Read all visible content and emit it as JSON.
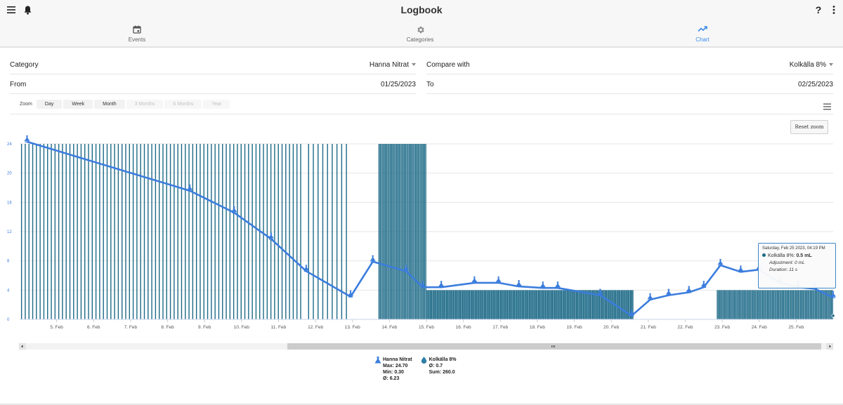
{
  "header": {
    "title": "Logbook",
    "help_label": "?",
    "tabs": [
      {
        "label": "Events",
        "icon": "calendar-icon",
        "active": false
      },
      {
        "label": "Categories",
        "icon": "gear-icon",
        "active": false
      },
      {
        "label": "Chart",
        "icon": "trending-up-icon",
        "active": true
      }
    ]
  },
  "filters": {
    "category_label": "Category",
    "category_value": "Hanna Nitrat",
    "compare_label": "Compare with",
    "compare_value": "Kolkälla 8%",
    "from_label": "From",
    "from_value": "01/25/2023",
    "to_label": "To",
    "to_value": "02/25/2023"
  },
  "zoom": {
    "label": "Zoom",
    "buttons": [
      {
        "label": "Day",
        "enabled": true
      },
      {
        "label": "Week",
        "enabled": true
      },
      {
        "label": "Month",
        "enabled": true
      },
      {
        "label": "3 Months",
        "enabled": false
      },
      {
        "label": "6 Months",
        "enabled": false
      },
      {
        "label": "Year",
        "enabled": false
      }
    ],
    "reset_label": "Reset zoom"
  },
  "colors": {
    "line": "#3b7ddd",
    "bars": "#1d6a87",
    "accent": "#3b8beb"
  },
  "chart_data": {
    "type": "line",
    "x_range": [
      "Feb 4, 2023",
      "Feb 26, 2023"
    ],
    "ylim": [
      0,
      24
    ],
    "y_ticks": [
      0,
      4,
      8,
      12,
      16,
      20,
      24
    ],
    "x_ticks": [
      "5. Feb",
      "6. Feb",
      "7. Feb",
      "8. Feb",
      "9. Feb",
      "10. Feb",
      "11. Feb",
      "12. Feb",
      "13. Feb",
      "14. Feb",
      "15. Feb",
      "16. Feb",
      "17. Feb",
      "18. Feb",
      "19. Feb",
      "20. Feb",
      "21. Feb",
      "22. Feb",
      "23. Feb",
      "24. Feb",
      "25. Feb"
    ],
    "grid": true,
    "series": [
      {
        "name": "Hanna Nitrat",
        "type": "line",
        "points": [
          [
            4.2,
            24.3
          ],
          [
            8.6,
            17.6
          ],
          [
            9.8,
            14.6
          ],
          [
            10.8,
            11.0
          ],
          [
            11.75,
            6.6
          ],
          [
            12.95,
            3.1
          ],
          [
            13.55,
            7.9
          ],
          [
            14.45,
            6.6
          ],
          [
            14.9,
            4.4
          ],
          [
            15.4,
            4.4
          ],
          [
            16.3,
            5.0
          ],
          [
            16.95,
            5.0
          ],
          [
            17.5,
            4.5
          ],
          [
            18.15,
            4.3
          ],
          [
            18.55,
            4.3
          ],
          [
            19.7,
            3.3
          ],
          [
            20.55,
            0.5
          ],
          [
            21.05,
            2.7
          ],
          [
            21.55,
            3.3
          ],
          [
            22.1,
            3.7
          ],
          [
            22.5,
            4.4
          ],
          [
            22.95,
            7.4
          ],
          [
            23.5,
            6.5
          ],
          [
            24.0,
            6.8
          ],
          [
            24.55,
            5.0
          ],
          [
            25.05,
            4.4
          ],
          [
            25.5,
            4.2
          ],
          [
            26.0,
            3.0
          ]
        ]
      },
      {
        "name": "Kolkälla 8%",
        "type": "column",
        "spans": [
          {
            "from": 4.0,
            "to": 11.65,
            "value": 24.0,
            "count": 76
          },
          {
            "from": 11.75,
            "to": 12.9,
            "value": 24.0,
            "count": 9
          },
          {
            "from": 13.7,
            "to": 15.0,
            "value": 24.0,
            "count": 38
          },
          {
            "from": 15.0,
            "to": 20.6,
            "value": 4.0,
            "count": 180
          },
          {
            "from": 22.85,
            "to": 26.0,
            "value": 4.0,
            "count": 95
          }
        ]
      }
    ],
    "stats": {
      "hanna": {
        "name": "Hanna Nitrat",
        "max": "Max: 24.70",
        "min": "Min: 0.30",
        "avg": "Ø: 6.23"
      },
      "kolkalla": {
        "name": "Kolkälla 8%",
        "avg": "Ø: 0.7",
        "sum": "Sum: 260.0"
      }
    },
    "tooltip": {
      "date": "Saturday, Feb 25 2023, 04:19 PM",
      "series_label": "Kolkälla 8%: ",
      "value": "0.5 mL",
      "adjustment": "Adjustment: 0 mL",
      "duration": "Duration: 11 s"
    }
  }
}
